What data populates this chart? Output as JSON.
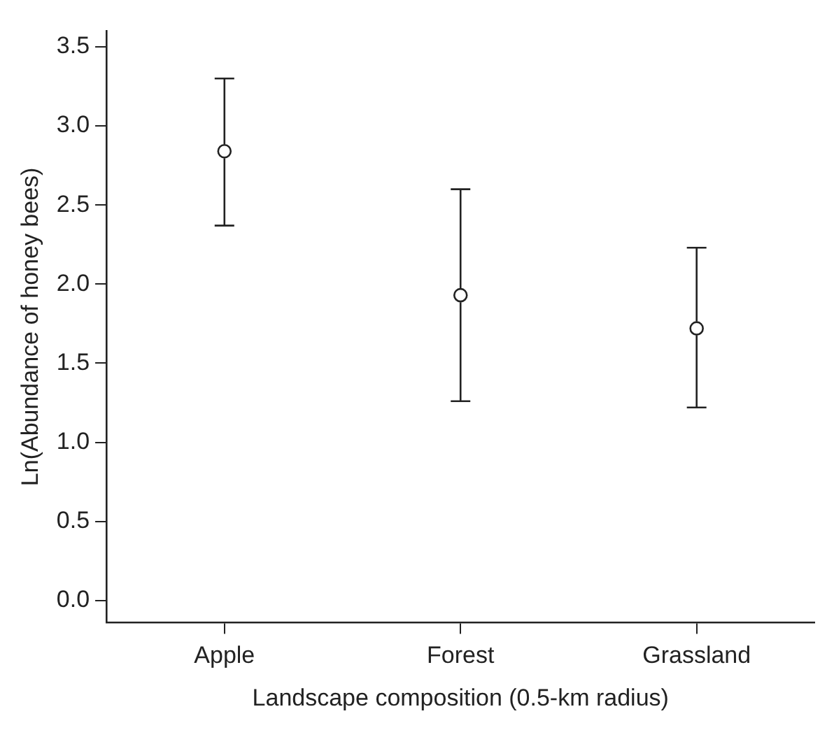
{
  "chart_data": {
    "type": "scatter",
    "xlabel": "Landscape composition (0.5-km radius)",
    "ylabel": "Ln(Abundance of honey bees)",
    "categories": [
      "Apple",
      "Forest",
      "Grassland"
    ],
    "values": [
      2.84,
      1.93,
      1.72
    ],
    "errors": [
      [
        2.37,
        3.3
      ],
      [
        1.26,
        2.6
      ],
      [
        1.22,
        2.23
      ]
    ],
    "color": "#222222",
    "marker": "circle",
    "ylim": [
      -0.14,
      3.6
    ],
    "yticks": [
      {
        "value": 0,
        "label": "0.0"
      },
      {
        "value": 0.5,
        "label": "0.5"
      },
      {
        "value": 1,
        "label": "1.0"
      },
      {
        "value": 1.5,
        "label": "1.5"
      },
      {
        "value": 2,
        "label": "2.0"
      },
      {
        "value": 2.5,
        "label": "2.5"
      },
      {
        "value": 3,
        "label": "3.0"
      },
      {
        "value": 3.5,
        "label": "3.5"
      }
    ],
    "grid": false,
    "legend": false
  }
}
